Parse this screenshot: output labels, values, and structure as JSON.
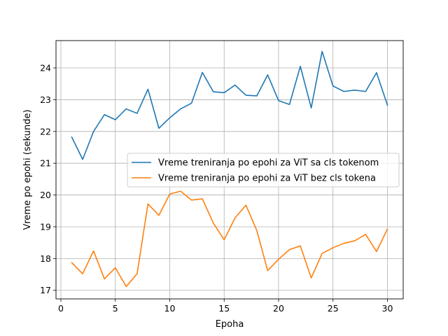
{
  "chart_data": {
    "type": "line",
    "title": "",
    "xlabel": "Epoha",
    "ylabel": "Vreme po epohi (sekunde)",
    "xlim": [
      -0.45,
      31.45
    ],
    "ylim": [
      16.73,
      24.86
    ],
    "xticks": [
      0,
      5,
      10,
      15,
      20,
      25,
      30
    ],
    "yticks": [
      17,
      18,
      19,
      20,
      21,
      22,
      23,
      24
    ],
    "grid": true,
    "legend_position": "center-right",
    "x": [
      1,
      2,
      3,
      4,
      5,
      6,
      7,
      8,
      9,
      10,
      11,
      12,
      13,
      14,
      15,
      16,
      17,
      18,
      19,
      20,
      21,
      22,
      23,
      24,
      25,
      26,
      27,
      28,
      29,
      30
    ],
    "series": [
      {
        "name": "Vreme treniranja po epohi za ViT sa cls tokenom",
        "color": "#1f77b4",
        "values": [
          21.82,
          21.12,
          22.0,
          22.53,
          22.37,
          22.71,
          22.57,
          23.33,
          22.1,
          22.43,
          22.71,
          22.89,
          23.86,
          23.25,
          23.22,
          23.46,
          23.14,
          23.12,
          23.78,
          22.97,
          22.85,
          24.05,
          22.74,
          24.52,
          23.43,
          23.26,
          23.3,
          23.26,
          23.85,
          22.83
        ]
      },
      {
        "name": "Vreme treniranja po epohi za ViT bez cls tokena",
        "color": "#ff7f0e",
        "values": [
          17.87,
          17.52,
          18.24,
          17.36,
          17.71,
          17.12,
          17.52,
          19.72,
          19.36,
          20.03,
          20.12,
          19.84,
          19.88,
          19.12,
          18.59,
          19.28,
          19.68,
          18.88,
          17.62,
          17.98,
          18.28,
          18.4,
          17.39,
          18.16,
          18.34,
          18.48,
          18.56,
          18.76,
          18.22,
          18.93
        ]
      }
    ]
  }
}
